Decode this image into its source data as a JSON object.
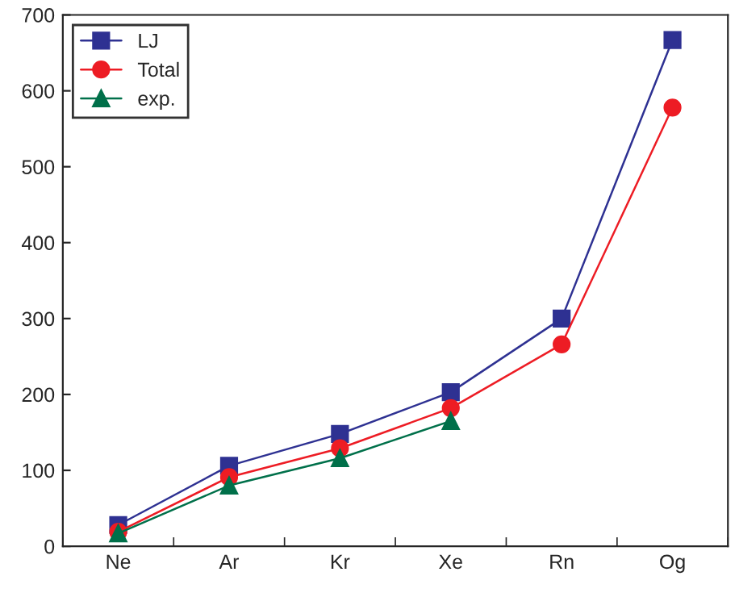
{
  "chart_data": {
    "type": "line",
    "categories": [
      "Ne",
      "Ar",
      "Kr",
      "Xe",
      "Rn",
      "Og"
    ],
    "series": [
      {
        "name": "LJ",
        "color": "#2e3192",
        "marker": "square",
        "values": [
          28,
          106,
          148,
          203,
          300,
          667
        ]
      },
      {
        "name": "Total",
        "color": "#ed1c24",
        "marker": "circle",
        "values": [
          19,
          91,
          129,
          182,
          266,
          578
        ]
      },
      {
        "name": "exp.",
        "color": "#00704a",
        "marker": "triangle",
        "values": [
          17,
          80,
          116,
          165,
          null,
          null
        ]
      }
    ],
    "ylim": [
      0,
      700
    ],
    "yticks": [
      0,
      100,
      200,
      300,
      400,
      500,
      600,
      700
    ],
    "legend": "top left",
    "grid": false,
    "line_style": "solid"
  }
}
